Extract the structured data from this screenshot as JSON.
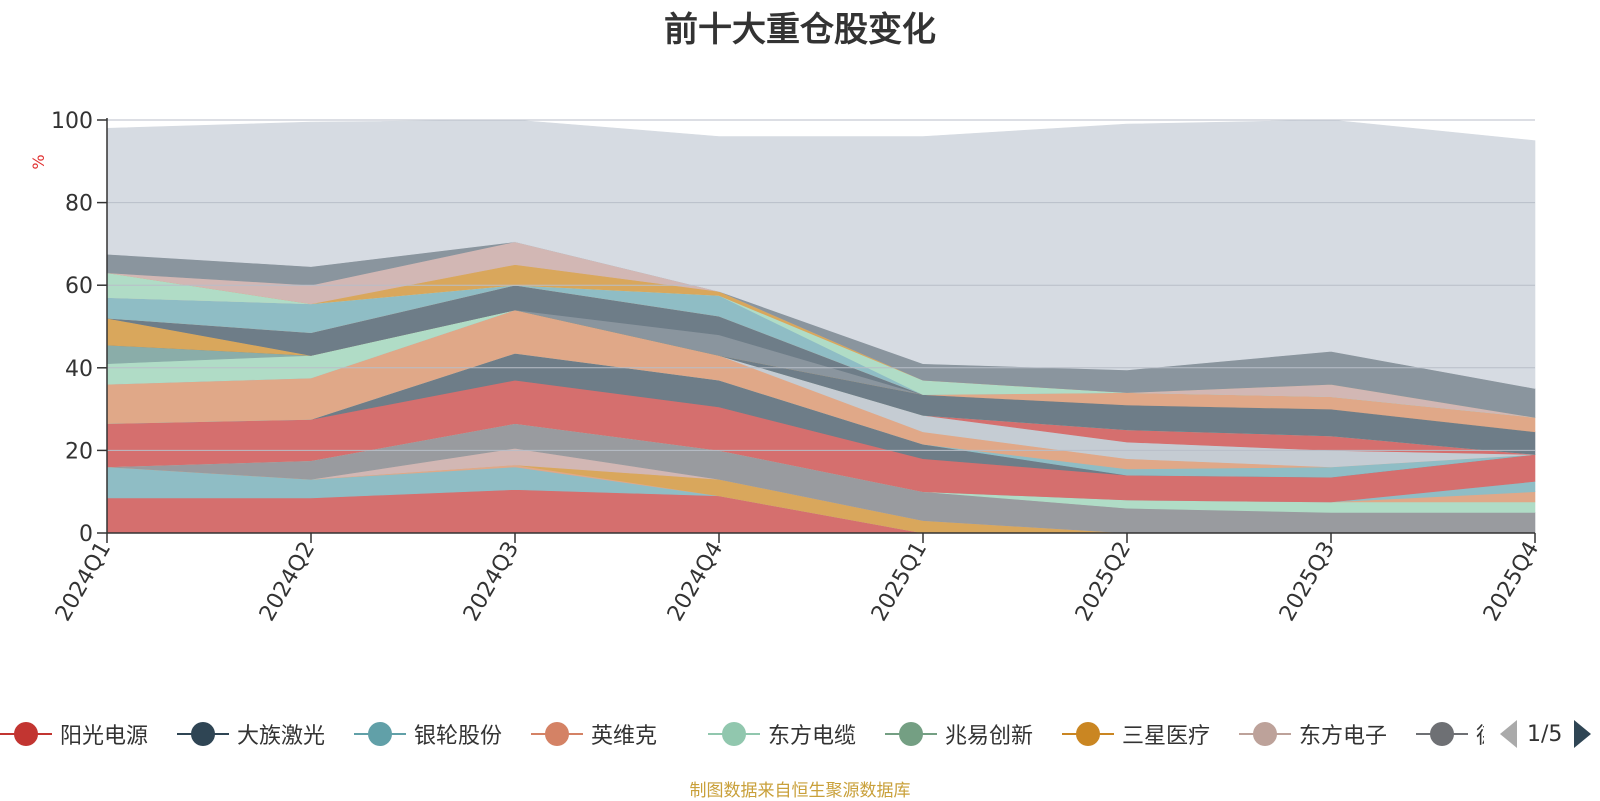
{
  "chart_data": {
    "type": "area",
    "stacked": true,
    "title": "前十大重仓股变化",
    "ylabel": "%",
    "ylim": [
      0,
      100
    ],
    "yticks": [
      0,
      20,
      40,
      60,
      80,
      100
    ],
    "grid": true,
    "legend_position": "bottom",
    "categories": [
      "2024Q1",
      "2024Q2",
      "2024Q3",
      "2024Q4",
      "2025Q1",
      "2025Q2",
      "2025Q3",
      "2025Q4"
    ],
    "bands": [
      {
        "color": "#d56f6e",
        "values": [
          8.5,
          8.5,
          10.5,
          9,
          0,
          0,
          0,
          0
        ]
      },
      {
        "color": "#8fbdc5",
        "values": [
          7.5,
          4.5,
          5.5,
          0,
          0,
          0,
          0,
          0
        ]
      },
      {
        "color": "#e0a888",
        "values": [
          0,
          0,
          0.5,
          0,
          0,
          0,
          0,
          0
        ]
      },
      {
        "color": "#d9a75c",
        "values": [
          0,
          0,
          0,
          4,
          3,
          0,
          0,
          0
        ]
      },
      {
        "color": "#d2b7b4",
        "values": [
          0,
          0,
          4,
          0,
          0,
          0,
          0,
          0
        ]
      },
      {
        "color": "#999b9f",
        "values": [
          0,
          4.5,
          6,
          7,
          7,
          6,
          5,
          5
        ]
      },
      {
        "color": "#b0dcc6",
        "values": [
          0,
          0,
          0,
          0,
          0,
          2,
          2.5,
          2.5
        ]
      },
      {
        "color": "#e0a888",
        "values": [
          0,
          0,
          0,
          0,
          0,
          0,
          0,
          2.5
        ]
      },
      {
        "color": "#8fbdc5",
        "values": [
          0,
          0,
          0,
          0,
          0,
          0,
          0,
          2.5
        ]
      },
      {
        "color": "#d56f6e",
        "values": [
          10.5,
          10,
          10.5,
          10.5,
          8,
          6,
          6,
          6.5
        ]
      },
      {
        "color": "#6e7d88",
        "values": [
          0,
          0,
          6.5,
          6.5,
          3.5,
          0,
          0,
          0
        ]
      },
      {
        "color": "#8fbdc5",
        "values": [
          0,
          0,
          0,
          0,
          0,
          1.5,
          2.5,
          0
        ]
      },
      {
        "color": "#e0a888",
        "values": [
          9.5,
          10,
          10.5,
          6,
          3,
          2.5,
          0,
          0
        ]
      },
      {
        "color": "#c5ccd3",
        "values": [
          0,
          0,
          0,
          0,
          4,
          4,
          4,
          0
        ]
      },
      {
        "color": "#d56f6e",
        "values": [
          0,
          0,
          0,
          0,
          0,
          3,
          3.5,
          0
        ]
      },
      {
        "color": "#b0dcc6",
        "values": [
          5,
          5.5,
          0,
          0,
          0,
          0,
          0,
          0
        ]
      },
      {
        "color": "#8aada9",
        "values": [
          4.5,
          0,
          0,
          0,
          0,
          0,
          0,
          0
        ]
      },
      {
        "color": "#6e7d88",
        "values": [
          0,
          0,
          0,
          0,
          5,
          6,
          6.5,
          5.5
        ]
      },
      {
        "color": "#d9a75c",
        "values": [
          6.5,
          0,
          0,
          0,
          0,
          0,
          0,
          0
        ]
      },
      {
        "color": "#8a959e",
        "values": [
          0,
          0,
          0,
          5,
          0,
          0,
          0,
          0
        ]
      },
      {
        "color": "#6e7d88",
        "values": [
          0,
          5.5,
          6,
          4.5,
          0,
          0,
          0,
          0
        ]
      },
      {
        "color": "#e0a888",
        "values": [
          0,
          0,
          0,
          0,
          0,
          3,
          3,
          3.5
        ]
      },
      {
        "color": "#8fbdc5",
        "values": [
          5,
          7,
          0,
          5,
          0,
          0,
          0,
          0
        ]
      },
      {
        "color": "#b0dcc6",
        "values": [
          0,
          0,
          0,
          0,
          3.5,
          0,
          0,
          0
        ]
      },
      {
        "color": "#d2b7b4",
        "values": [
          0,
          0,
          0,
          0,
          0,
          0,
          3,
          0
        ]
      },
      {
        "color": "#b0dcc6",
        "values": [
          6,
          0,
          0,
          0,
          0,
          0,
          0,
          0
        ]
      },
      {
        "color": "#d9a75c",
        "values": [
          0,
          0,
          5,
          1,
          0,
          0,
          0,
          0
        ]
      },
      {
        "color": "#d2b7b4",
        "values": [
          0,
          4.5,
          5.5,
          0,
          0,
          0,
          0,
          0
        ]
      },
      {
        "color": "#8a959e",
        "values": [
          4.5,
          4.5,
          0,
          0,
          4,
          5.5,
          8,
          7
        ]
      },
      {
        "color": "#d6dbe2",
        "values": [
          30.5,
          35,
          29.5,
          37.5,
          55,
          59.5,
          56,
          60
        ]
      }
    ],
    "series": [
      {
        "name": "阳光电源",
        "color": "#c23531"
      },
      {
        "name": "大族激光",
        "color": "#2f4554"
      },
      {
        "name": "银轮股份",
        "color": "#61a0a8"
      },
      {
        "name": "英维克",
        "color": "#d48265"
      },
      {
        "name": "东方电缆",
        "color": "#91c7ae"
      },
      {
        "name": "兆易创新",
        "color": "#749f83"
      },
      {
        "name": "三星医疗",
        "color": "#ca8622"
      },
      {
        "name": "东方电子",
        "color": "#bda29a"
      },
      {
        "name": "德业股份",
        "color": "#6e7074"
      }
    ],
    "legend_page": "1/5",
    "source": "制图数据来自恒生聚源数据库"
  }
}
